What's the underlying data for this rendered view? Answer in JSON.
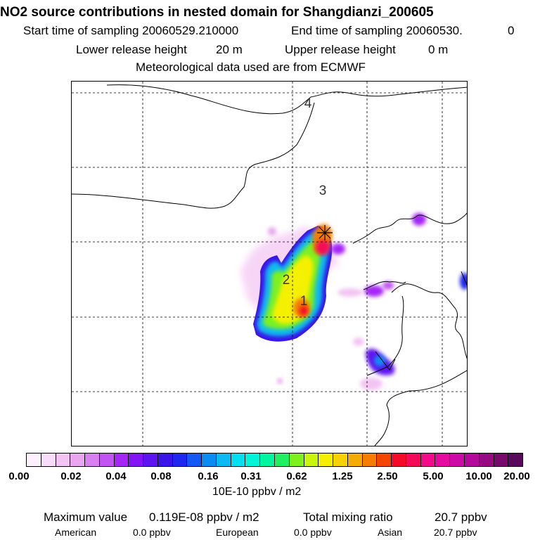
{
  "header": {
    "title": "NO2 source contributions in nested domain for Shangdianzi_200605",
    "start_label": "Start time of sampling 20060529.210000",
    "end_label": "End time of sampling 20060530.",
    "end_value": "0",
    "lower_label": "Lower release height",
    "lower_value": "20 m",
    "upper_label": "Upper release height",
    "upper_value": "0 m",
    "met_line": "Meteorological data used are from ECMWF"
  },
  "map": {
    "region_labels": [
      "1",
      "2",
      "3",
      "4"
    ],
    "station_marker": "station-star"
  },
  "legend": {
    "ticks": [
      "0.00",
      "0.02",
      "0.04",
      "0.08",
      "0.16",
      "0.31",
      "0.62",
      "1.25",
      "2.50",
      "5.00",
      "10.00",
      "20.00"
    ],
    "colors": [
      "#fdf1fd",
      "#f9dcf9",
      "#f3c4f3",
      "#e9a6f0",
      "#d97ff0",
      "#c254f2",
      "#a626f7",
      "#8214f5",
      "#5e14f0",
      "#3a14e8",
      "#1e28f0",
      "#1458f5",
      "#0a8cf5",
      "#0abaf0",
      "#00e0f0",
      "#00f5d8",
      "#00f5a0",
      "#1ef062",
      "#7df020",
      "#c8f50a",
      "#f5f000",
      "#f5d200",
      "#f5aa00",
      "#f57d00",
      "#f54600",
      "#f50a28",
      "#f50a5a",
      "#f50a8c",
      "#e60aa0",
      "#cc0aa5",
      "#b40a9b",
      "#960a82",
      "#780a6e",
      "#5a0a5a"
    ],
    "unit": "10E-10 ppbv / m2"
  },
  "stats": {
    "max_label": "Maximum value",
    "max_value": "0.119E-08 ppbv / m2",
    "total_label": "Total mixing ratio",
    "total_value": "20.7 ppbv",
    "american_label": "American",
    "american_value": "0.0 ppbv",
    "european_label": "European",
    "european_value": "0.0 ppbv",
    "asian_label": "Asian",
    "asian_value": "20.7 ppbv"
  }
}
